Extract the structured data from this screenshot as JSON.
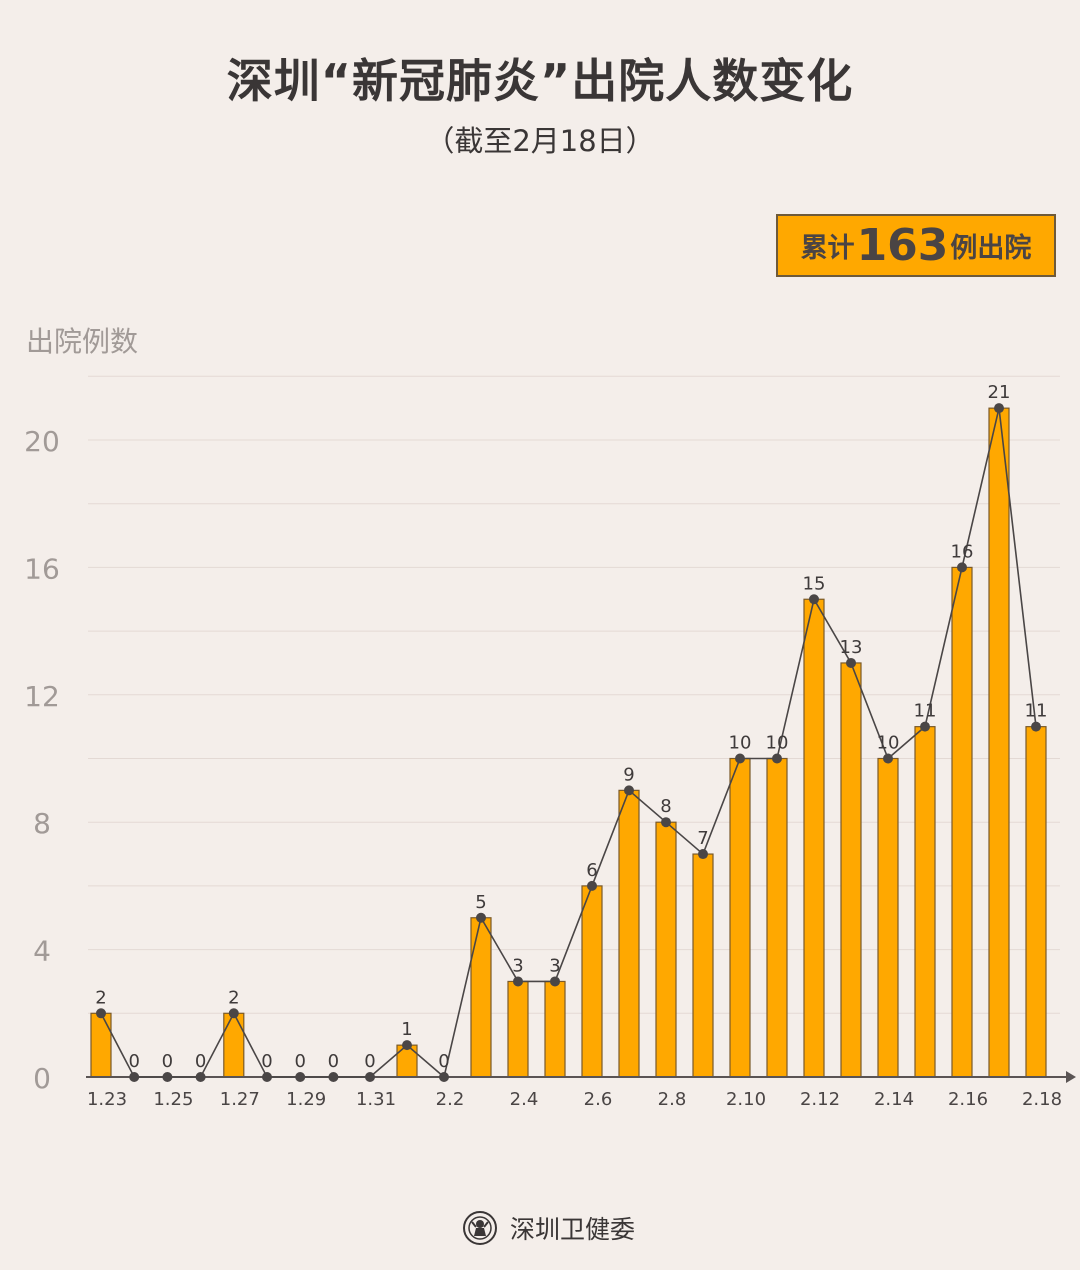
{
  "title": "深圳“新冠肺炎”出院人数变化",
  "subtitle": "（截至2月18日）",
  "total_badge": {
    "prefix": "累计",
    "number": "163",
    "suffix": "例出院"
  },
  "footer": {
    "name": "深圳卫健委",
    "logo_icon": "health-commission-seal-icon"
  },
  "colors": {
    "bar": "#ffa800",
    "bar_border": "#7a5a2a",
    "line": "#4a4646",
    "background": "#f4eeea"
  },
  "chart_data": {
    "type": "bar",
    "overlay": "line",
    "ylabel": "出院例数",
    "ylim": [
      0,
      22
    ],
    "yticks": [
      0,
      4,
      8,
      12,
      16,
      20
    ],
    "grid": true,
    "categories": [
      "1.23",
      "1.24",
      "1.25",
      "1.26",
      "1.27",
      "1.28",
      "1.29",
      "1.30",
      "1.31",
      "2.1",
      "2.2",
      "2.3",
      "2.4",
      "2.5",
      "2.6",
      "2.7",
      "2.8",
      "2.9",
      "2.10",
      "2.11",
      "2.12",
      "2.13",
      "2.14",
      "2.15",
      "2.16",
      "2.17",
      "2.18"
    ],
    "xtick_labels": [
      "1.23",
      "1.25",
      "1.27",
      "1.29",
      "1.31",
      "2.2",
      "2.4",
      "2.6",
      "2.8",
      "2.10",
      "2.12",
      "2.14",
      "2.16",
      "2.18"
    ],
    "values": [
      2,
      0,
      0,
      0,
      2,
      0,
      0,
      0,
      0,
      1,
      0,
      5,
      3,
      3,
      6,
      9,
      8,
      7,
      10,
      10,
      15,
      13,
      10,
      11,
      16,
      21,
      11
    ]
  }
}
